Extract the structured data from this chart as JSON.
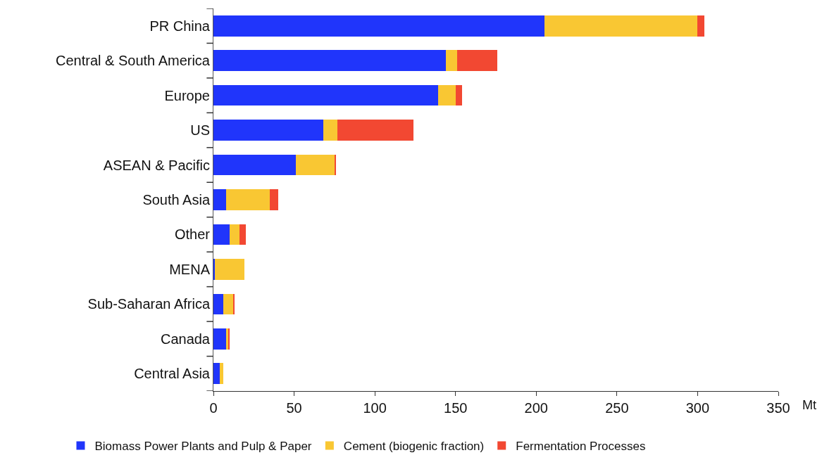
{
  "chart_data": {
    "type": "bar",
    "orientation": "horizontal",
    "stacked": true,
    "xlabel": "Mt",
    "categories": [
      "PR China",
      "Central & South America",
      "Europe",
      "US",
      "ASEAN & Pacific",
      "South Asia",
      "Other",
      "MENA",
      "Sub-Saharan Africa",
      "Canada",
      "Central Asia"
    ],
    "series": [
      {
        "name": "Biomass Power Plants and Pulp & Paper",
        "color": "#2035fb",
        "values": [
          205,
          144,
          139,
          68,
          51,
          8,
          10,
          1,
          6,
          8,
          4
        ]
      },
      {
        "name": "Cement (biogenic fraction)",
        "color": "#f9c733",
        "values": [
          95,
          7,
          11,
          9,
          24,
          27,
          6,
          18,
          6,
          1,
          2
        ]
      },
      {
        "name": "Fermentation Processes",
        "color": "#f24832",
        "values": [
          4,
          25,
          4,
          47,
          1,
          5,
          4,
          0,
          1,
          1,
          0
        ]
      }
    ],
    "xlim": [
      0,
      350
    ],
    "xticks": [
      0,
      50,
      100,
      150,
      200,
      250,
      300,
      350
    ],
    "legend": "bottom"
  }
}
